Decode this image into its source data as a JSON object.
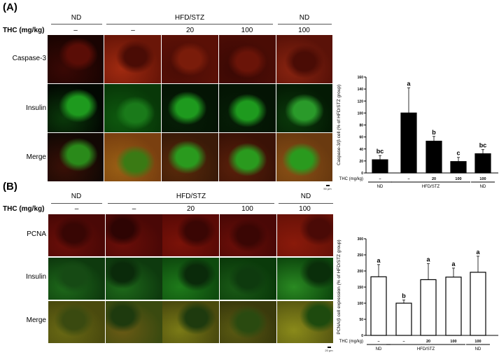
{
  "panelA": {
    "letter": "(A)",
    "thc_label": "THC (mg/kg)",
    "groups": [
      {
        "label": "ND"
      },
      {
        "label": "HFD/STZ"
      },
      {
        "label": "ND"
      }
    ],
    "doses": [
      "–",
      "–",
      "20",
      "100",
      "100"
    ],
    "rows": [
      "Caspase-3",
      "Insulin",
      "Merge"
    ],
    "scale_label": "50 μm"
  },
  "panelB": {
    "letter": "(B)",
    "thc_label": "THC (mg/kg)",
    "groups": [
      {
        "label": "ND"
      },
      {
        "label": "HFD/STZ"
      },
      {
        "label": "ND"
      }
    ],
    "doses": [
      "–",
      "–",
      "20",
      "100",
      "100"
    ],
    "rows": [
      "PCNA",
      "Insulin",
      "Merge"
    ],
    "scale_label": "20 μm"
  },
  "chart_data": [
    {
      "type": "bar",
      "title": "",
      "ylabel": "Caspase-3/β cell (% of HFD/STZ group)",
      "xlabel": "THC (mg/kg)",
      "ylim": [
        0,
        160
      ],
      "yticks": [
        0,
        20,
        40,
        60,
        80,
        100,
        120,
        140,
        160
      ],
      "categories": [
        "–",
        "–",
        "20",
        "100",
        "100"
      ],
      "group_labels": [
        "ND",
        "HFD/STZ",
        "ND"
      ],
      "bar_fill": "#000000",
      "values": [
        22,
        100,
        53,
        19,
        32
      ],
      "errors": [
        7,
        42,
        8,
        7,
        7
      ],
      "annotations": [
        "bc",
        "a",
        "b",
        "c",
        "bc"
      ],
      "grid": false
    },
    {
      "type": "bar",
      "title": "",
      "ylabel": "PCNA/β cell expression (% of HFD/STZ group)",
      "xlabel": "THC (mg/kg)",
      "ylim": [
        0,
        300
      ],
      "yticks": [
        0,
        50,
        100,
        150,
        200,
        250,
        300
      ],
      "categories": [
        "–",
        "–",
        "20",
        "100",
        "100"
      ],
      "group_labels": [
        "ND",
        "HFD/STZ",
        "ND"
      ],
      "bar_fill": "#ffffff",
      "values": [
        182,
        100,
        173,
        181,
        196
      ],
      "errors": [
        38,
        10,
        50,
        28,
        50
      ],
      "annotations": [
        "a",
        "b",
        "a",
        "a",
        "a"
      ],
      "grid": false
    }
  ]
}
